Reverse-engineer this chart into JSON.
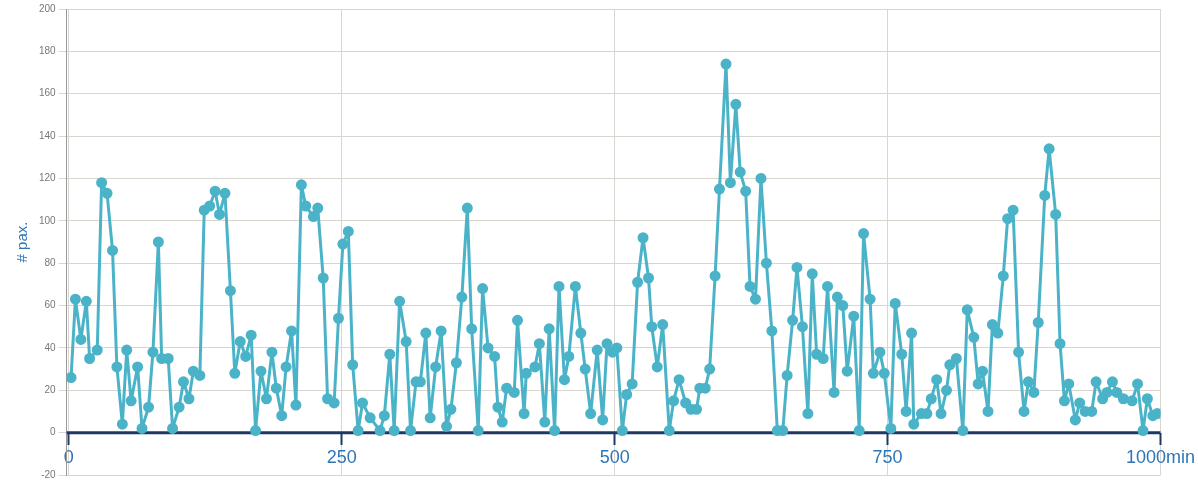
{
  "chart_data": {
    "type": "line",
    "ylabel": "# pax.",
    "xlim": [
      -2,
      1000
    ],
    "xticks": [
      0,
      250,
      500,
      750,
      {
        "value": 1000,
        "label": "1000min"
      }
    ],
    "ylim": [
      -20,
      200
    ],
    "yticks": [
      -20,
      0,
      20,
      40,
      60,
      80,
      100,
      120,
      140,
      160,
      180,
      200
    ],
    "grid": true,
    "ref_lines": [
      {
        "axis": "y",
        "value": 0,
        "color": "#1f3864"
      }
    ],
    "legend": false,
    "marker": "circle",
    "line_style": "solid",
    "series": [
      {
        "color": "#4bb3c8",
        "x": [
          2,
          6,
          11,
          16,
          19,
          26,
          30,
          35,
          40,
          44,
          49,
          53,
          57,
          63,
          67,
          73,
          77,
          82,
          85,
          91,
          95,
          101,
          105,
          110,
          114,
          120,
          124,
          129,
          134,
          138,
          143,
          148,
          152,
          157,
          162,
          167,
          171,
          176,
          181,
          186,
          190,
          195,
          199,
          204,
          208,
          213,
          217,
          224,
          228,
          233,
          237,
          243,
          247,
          251,
          256,
          260,
          265,
          269,
          276,
          285,
          289,
          294,
          298,
          303,
          309,
          313,
          318,
          322,
          327,
          331,
          336,
          341,
          346,
          350,
          355,
          360,
          365,
          369,
          375,
          379,
          384,
          390,
          393,
          397,
          401,
          408,
          411,
          417,
          419,
          427,
          431,
          436,
          440,
          445,
          449,
          454,
          458,
          464,
          469,
          473,
          478,
          484,
          489,
          493,
          498,
          502,
          507,
          511,
          516,
          521,
          526,
          531,
          534,
          539,
          544,
          550,
          554,
          559,
          565,
          570,
          575,
          578,
          583,
          587,
          592,
          596,
          602,
          606,
          611,
          615,
          620,
          624,
          629,
          634,
          639,
          644,
          649,
          654,
          658,
          663,
          667,
          672,
          677,
          681,
          685,
          691,
          695,
          701,
          704,
          709,
          713,
          719,
          724,
          728,
          734,
          737,
          743,
          747,
          753,
          757,
          763,
          767,
          772,
          774,
          781,
          786,
          790,
          795,
          799,
          804,
          807,
          813,
          819,
          823,
          829,
          833,
          837,
          842,
          846,
          851,
          856,
          860,
          865,
          870,
          875,
          879,
          884,
          888,
          894,
          898,
          904,
          908,
          912,
          916,
          922,
          926,
          931,
          937,
          941,
          947,
          951,
          956,
          960,
          966,
          974,
          979,
          984,
          988,
          993,
          997
        ],
        "values": [
          26,
          63,
          44,
          62,
          35,
          39,
          118,
          113,
          86,
          31,
          4,
          39,
          15,
          31,
          2,
          12,
          38,
          90,
          35,
          35,
          2,
          12,
          24,
          16,
          29,
          27,
          105,
          107,
          114,
          103,
          113,
          67,
          28,
          43,
          36,
          46,
          1,
          29,
          16,
          38,
          21,
          8,
          31,
          48,
          13,
          117,
          107,
          102,
          106,
          73,
          16,
          14,
          54,
          89,
          95,
          32,
          1,
          14,
          7,
          1,
          8,
          37,
          1,
          62,
          43,
          1,
          24,
          24,
          47,
          7,
          31,
          48,
          3,
          11,
          33,
          64,
          106,
          49,
          1,
          68,
          40,
          36,
          12,
          5,
          21,
          19,
          53,
          9,
          28,
          31,
          42,
          5,
          49,
          1,
          69,
          25,
          36,
          69,
          47,
          30,
          9,
          39,
          6,
          42,
          38,
          40,
          1,
          18,
          23,
          71,
          92,
          73,
          50,
          31,
          51,
          1,
          15,
          25,
          14,
          11,
          11,
          21,
          21,
          30,
          74,
          115,
          174,
          118,
          155,
          123,
          114,
          69,
          63,
          120,
          80,
          48,
          1,
          1,
          27,
          53,
          78,
          50,
          9,
          75,
          37,
          35,
          69,
          19,
          64,
          60,
          29,
          55,
          1,
          94,
          63,
          28,
          38,
          28,
          2,
          61,
          37,
          10,
          47,
          4,
          9,
          9,
          16,
          25,
          9,
          20,
          32,
          35,
          1,
          58,
          45,
          23,
          29,
          10,
          51,
          47,
          74,
          101,
          105,
          38,
          10,
          24,
          19,
          52,
          112,
          134,
          103,
          42,
          15,
          23,
          6,
          14,
          10,
          10,
          24,
          16,
          19,
          24,
          19,
          16,
          15,
          23,
          1,
          16,
          8,
          9
        ]
      }
    ]
  }
}
